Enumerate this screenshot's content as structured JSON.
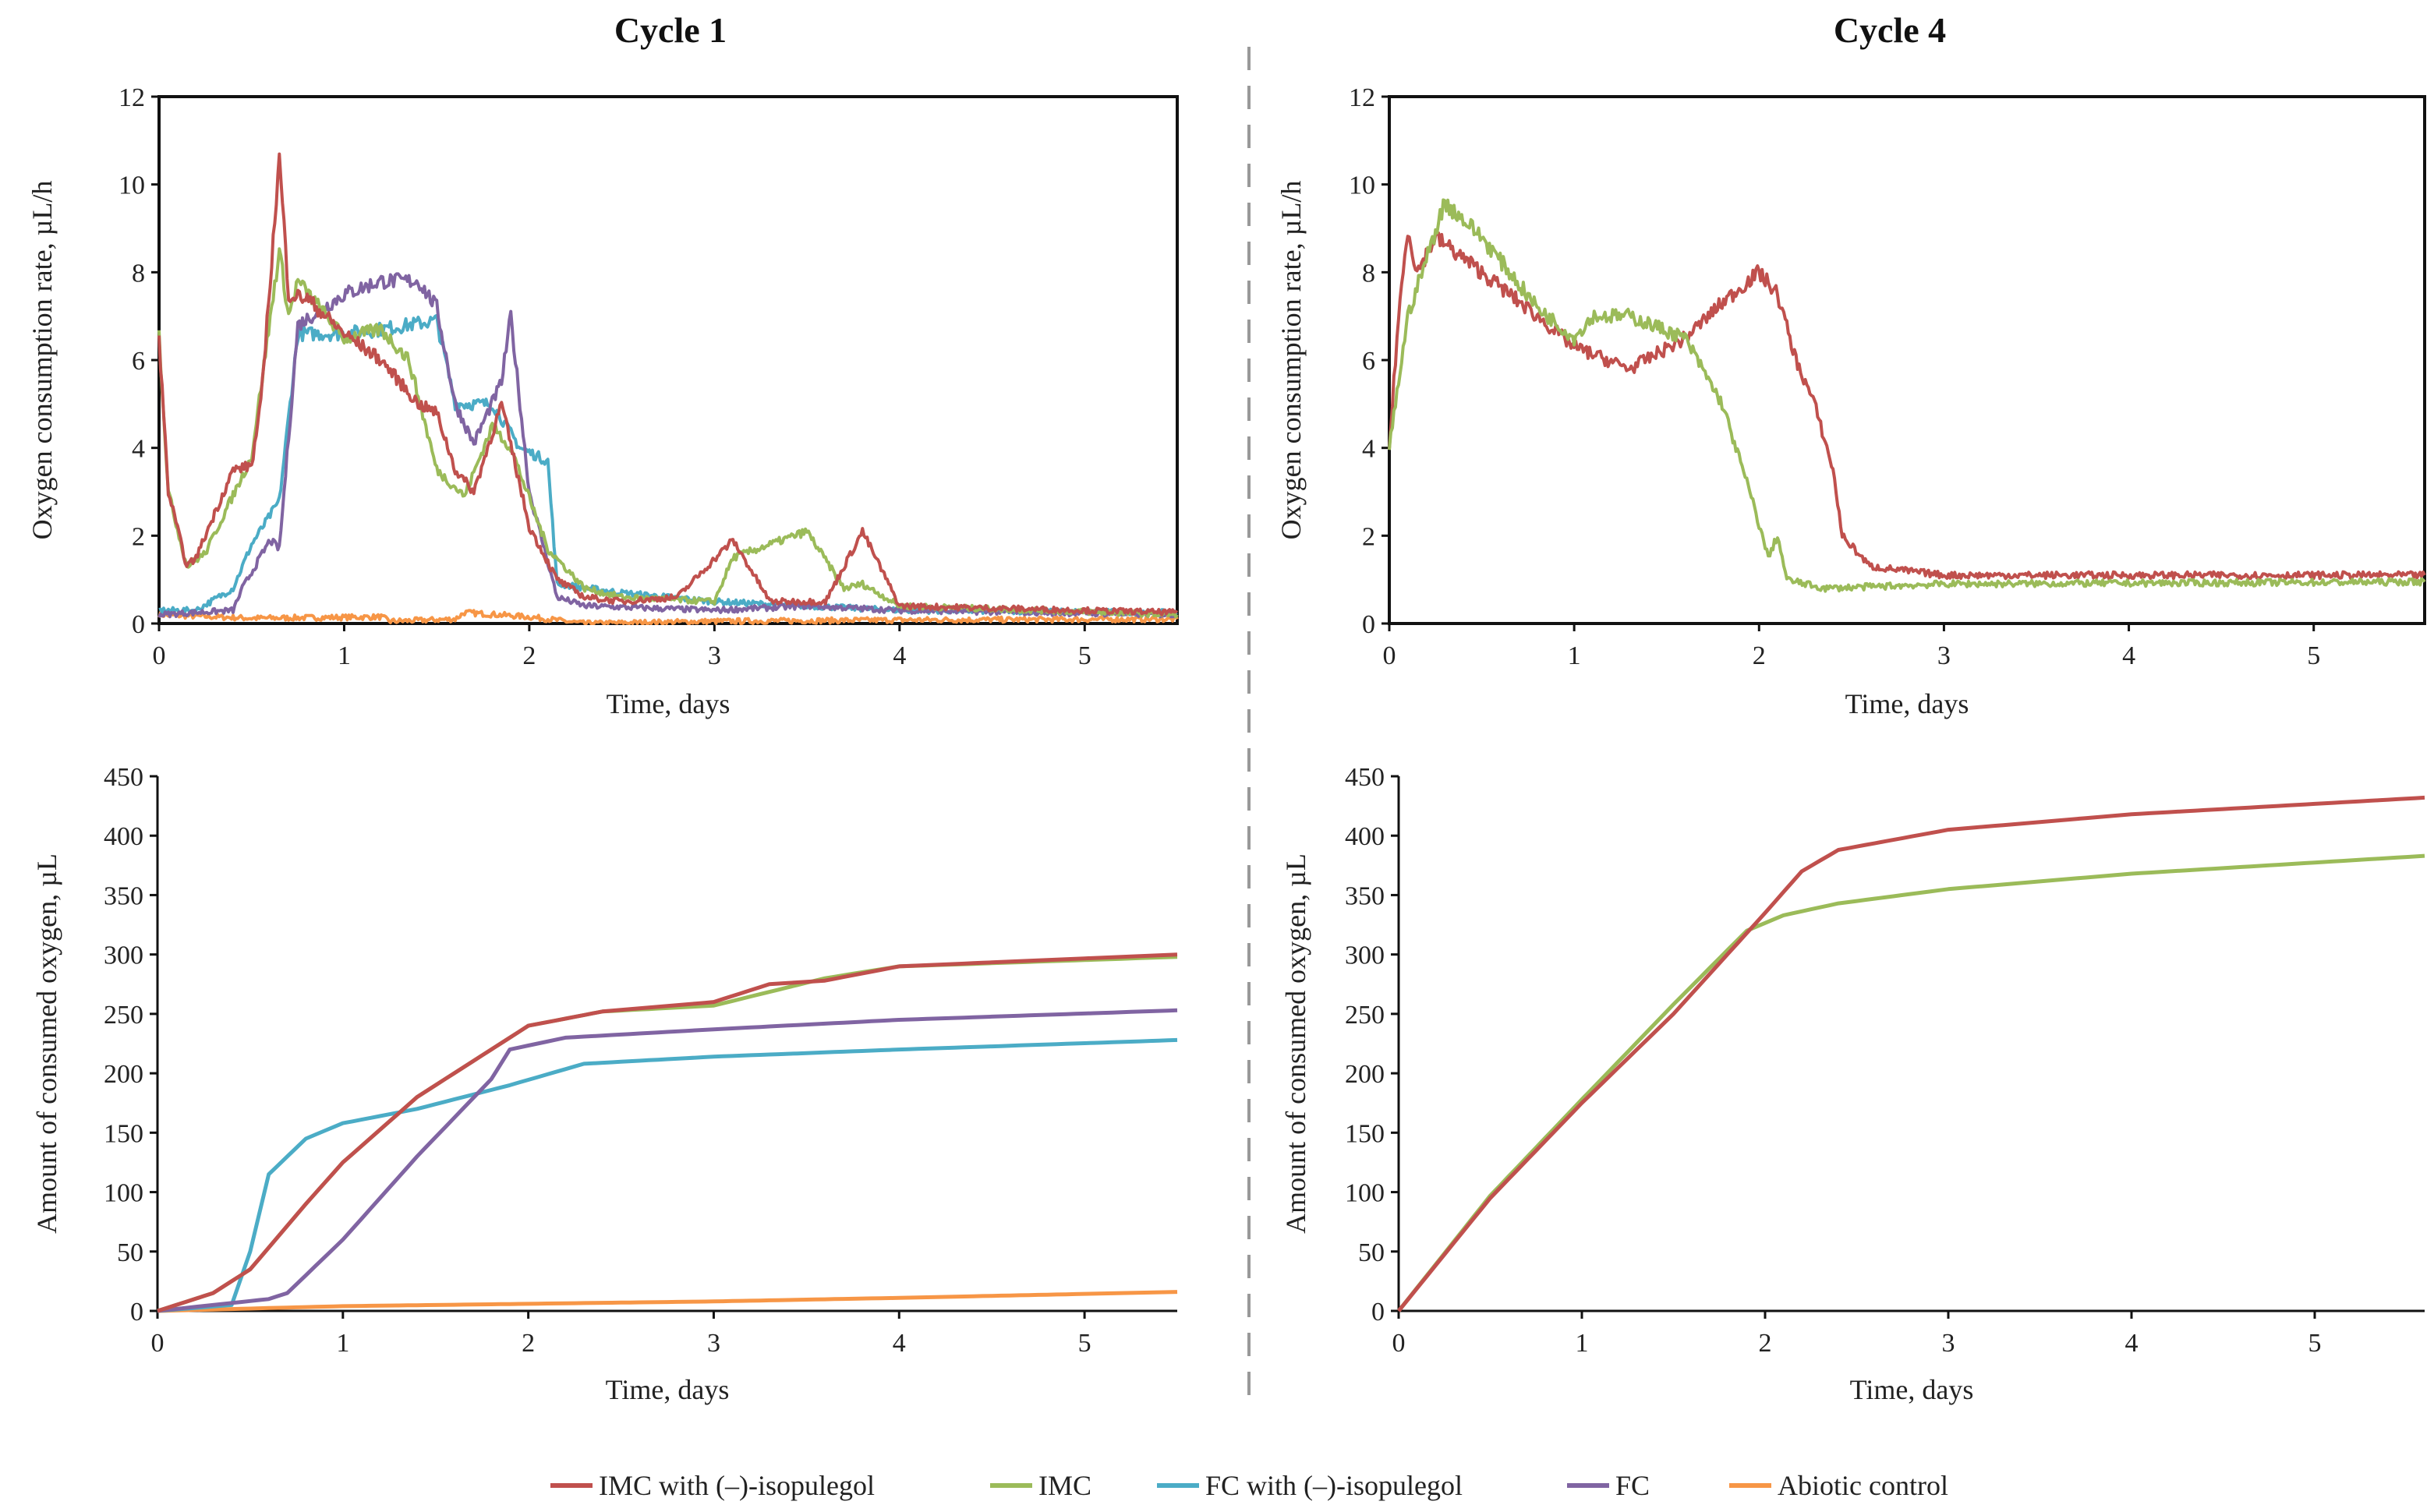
{
  "titles": {
    "left": "Cycle 1",
    "right": "Cycle 4"
  },
  "legend": [
    {
      "label": "IMC with (–)-isopulegol",
      "color": "#c0504d"
    },
    {
      "label": "IMC",
      "color": "#9bbb59"
    },
    {
      "label": "FC with (–)-isopulegol",
      "color": "#4bacc6"
    },
    {
      "label": "FC",
      "color": "#8064a2"
    },
    {
      "label": "Abiotic control",
      "color": "#f79646"
    }
  ],
  "chart_data": [
    {
      "id": "c1rate",
      "type": "line",
      "title": "Cycle 1",
      "xlabel": "Time, days",
      "ylabel": "Oxygen consumption rate,  µL/h",
      "xlim": [
        0,
        5.5
      ],
      "ylim": [
        0,
        12
      ],
      "xticks": [
        0,
        1,
        2,
        3,
        4,
        5
      ],
      "yticks": [
        0,
        2,
        4,
        6,
        8,
        10,
        12
      ],
      "series": [
        {
          "name": "Abiotic control",
          "color": "#f79646",
          "points": [
            [
              0,
              0.2
            ],
            [
              0.5,
              0.12
            ],
            [
              1.2,
              0.15
            ],
            [
              1.25,
              0.05
            ],
            [
              1.6,
              0.1
            ],
            [
              1.65,
              0.25
            ],
            [
              2.0,
              0.15
            ],
            [
              2.3,
              0
            ],
            [
              3,
              0.05
            ],
            [
              4,
              0.08
            ],
            [
              5.5,
              0.1
            ]
          ]
        },
        {
          "name": "FC with (–)-isopulegol",
          "color": "#4bacc6",
          "points": [
            [
              0,
              0.3
            ],
            [
              0.2,
              0.3
            ],
            [
              0.4,
              0.8
            ],
            [
              0.5,
              1.8
            ],
            [
              0.65,
              2.8
            ],
            [
              0.75,
              6.6
            ],
            [
              1,
              6.6
            ],
            [
              1.2,
              6.7
            ],
            [
              1.5,
              6.9
            ],
            [
              1.6,
              5
            ],
            [
              1.8,
              5
            ],
            [
              1.95,
              4
            ],
            [
              2.1,
              3.7
            ],
            [
              2.15,
              0.9
            ],
            [
              2.5,
              0.7
            ],
            [
              3,
              0.5
            ],
            [
              3.5,
              0.4
            ],
            [
              4,
              0.3
            ],
            [
              5.5,
              0.25
            ]
          ]
        },
        {
          "name": "FC",
          "color": "#8064a2",
          "points": [
            [
              0,
              0.2
            ],
            [
              0.4,
              0.3
            ],
            [
              0.45,
              0.8
            ],
            [
              0.6,
              1.9
            ],
            [
              0.65,
              1.7
            ],
            [
              0.75,
              6.8
            ],
            [
              1,
              7.5
            ],
            [
              1.2,
              7.8
            ],
            [
              1.4,
              7.8
            ],
            [
              1.5,
              7.2
            ],
            [
              1.6,
              5
            ],
            [
              1.7,
              4.1
            ],
            [
              1.85,
              5.5
            ],
            [
              1.9,
              7
            ],
            [
              2,
              3
            ],
            [
              2.15,
              0.6
            ],
            [
              2.3,
              0.4
            ],
            [
              3,
              0.3
            ],
            [
              3.5,
              0.4
            ],
            [
              4,
              0.3
            ],
            [
              5.5,
              0.2
            ]
          ]
        },
        {
          "name": "IMC",
          "color": "#9bbb59",
          "points": [
            [
              0,
              6.6
            ],
            [
              0.05,
              3
            ],
            [
              0.15,
              1.3
            ],
            [
              0.25,
              1.6
            ],
            [
              0.5,
              3.8
            ],
            [
              0.65,
              8.5
            ],
            [
              0.7,
              7
            ],
            [
              0.75,
              7.8
            ],
            [
              1,
              6.5
            ],
            [
              1.2,
              6.7
            ],
            [
              1.35,
              6
            ],
            [
              1.5,
              3.5
            ],
            [
              1.65,
              2.9
            ],
            [
              1.8,
              4.5
            ],
            [
              1.9,
              4
            ],
            [
              2.1,
              1.7
            ],
            [
              2.3,
              0.8
            ],
            [
              2.5,
              0.6
            ],
            [
              3,
              0.5
            ],
            [
              3.1,
              1.5
            ],
            [
              3.5,
              2.1
            ],
            [
              3.7,
              0.8
            ],
            [
              3.8,
              0.9
            ],
            [
              4,
              0.4
            ],
            [
              5.5,
              0.2
            ]
          ]
        },
        {
          "name": "IMC with (–)-isopulegol",
          "color": "#c0504d",
          "points": [
            [
              0,
              6.5
            ],
            [
              0.05,
              3
            ],
            [
              0.15,
              1.3
            ],
            [
              0.2,
              1.5
            ],
            [
              0.4,
              3.5
            ],
            [
              0.5,
              3.6
            ],
            [
              0.55,
              5
            ],
            [
              0.65,
              10.6
            ],
            [
              0.7,
              7.5
            ],
            [
              0.8,
              7.4
            ],
            [
              1,
              6.6
            ],
            [
              1.2,
              6
            ],
            [
              1.4,
              5
            ],
            [
              1.5,
              4.8
            ],
            [
              1.6,
              3.5
            ],
            [
              1.7,
              3
            ],
            [
              1.85,
              5
            ],
            [
              2,
              2.2
            ],
            [
              2.15,
              1
            ],
            [
              2.3,
              0.6
            ],
            [
              2.5,
              0.5
            ],
            [
              2.8,
              0.6
            ],
            [
              3.1,
              1.9
            ],
            [
              3.3,
              0.5
            ],
            [
              3.6,
              0.5
            ],
            [
              3.8,
              2.1
            ],
            [
              4,
              0.4
            ],
            [
              5.5,
              0.25
            ]
          ]
        }
      ]
    },
    {
      "id": "c1cum",
      "type": "line",
      "title": "Cycle 1",
      "xlabel": "Time, days",
      "ylabel": "Amount of consumed oxygen, µL",
      "xlim": [
        0,
        5.5
      ],
      "ylim": [
        0,
        450
      ],
      "xticks": [
        0,
        1,
        2,
        3,
        4,
        5
      ],
      "yticks": [
        0,
        50,
        100,
        150,
        200,
        250,
        300,
        350,
        400,
        450
      ],
      "series": [
        {
          "name": "Abiotic control",
          "color": "#f79646",
          "points": [
            [
              0,
              0
            ],
            [
              1,
              4
            ],
            [
              2,
              6
            ],
            [
              3,
              8
            ],
            [
              4,
              11
            ],
            [
              5.5,
              16
            ]
          ]
        },
        {
          "name": "FC with (–)-isopulegol",
          "color": "#4bacc6",
          "points": [
            [
              0,
              0
            ],
            [
              0.4,
              5
            ],
            [
              0.5,
              50
            ],
            [
              0.6,
              115
            ],
            [
              0.8,
              145
            ],
            [
              1,
              158
            ],
            [
              1.4,
              170
            ],
            [
              1.9,
              190
            ],
            [
              2.3,
              208
            ],
            [
              3,
              214
            ],
            [
              4,
              220
            ],
            [
              5.5,
              228
            ]
          ]
        },
        {
          "name": "FC",
          "color": "#8064a2",
          "points": [
            [
              0,
              0
            ],
            [
              0.6,
              10
            ],
            [
              0.7,
              15
            ],
            [
              1,
              60
            ],
            [
              1.4,
              130
            ],
            [
              1.8,
              195
            ],
            [
              1.9,
              220
            ],
            [
              2.2,
              230
            ],
            [
              3,
              237
            ],
            [
              4,
              245
            ],
            [
              5.5,
              253
            ]
          ]
        },
        {
          "name": "IMC",
          "color": "#9bbb59",
          "points": [
            [
              0,
              0
            ],
            [
              0.3,
              15
            ],
            [
              0.5,
              35
            ],
            [
              0.8,
              90
            ],
            [
              1,
              125
            ],
            [
              1.4,
              180
            ],
            [
              1.8,
              220
            ],
            [
              2,
              240
            ],
            [
              2.4,
              252
            ],
            [
              3,
              257
            ],
            [
              3.6,
              280
            ],
            [
              4,
              290
            ],
            [
              5.5,
              298
            ]
          ]
        },
        {
          "name": "IMC with (–)-isopulegol",
          "color": "#c0504d",
          "points": [
            [
              0,
              0
            ],
            [
              0.3,
              15
            ],
            [
              0.5,
              35
            ],
            [
              0.8,
              90
            ],
            [
              1,
              125
            ],
            [
              1.4,
              180
            ],
            [
              1.8,
              220
            ],
            [
              2,
              240
            ],
            [
              2.4,
              252
            ],
            [
              3,
              260
            ],
            [
              3.3,
              275
            ],
            [
              3.6,
              278
            ],
            [
              4,
              290
            ],
            [
              5.5,
              300
            ]
          ]
        }
      ]
    },
    {
      "id": "c4rate",
      "type": "line",
      "title": "Cycle 4",
      "xlabel": "Time, days",
      "ylabel": "Oxygen consumption rate,  µL/h",
      "xlim": [
        0,
        5.6
      ],
      "ylim": [
        0,
        12
      ],
      "xticks": [
        0,
        1,
        2,
        3,
        4,
        5
      ],
      "yticks": [
        0,
        2,
        4,
        6,
        8,
        10,
        12
      ],
      "series": [
        {
          "name": "IMC with (–)-isopulegol",
          "color": "#c0504d",
          "points": [
            [
              0,
              4
            ],
            [
              0.05,
              7
            ],
            [
              0.1,
              9
            ],
            [
              0.15,
              8
            ],
            [
              0.25,
              8.8
            ],
            [
              0.5,
              8
            ],
            [
              0.8,
              7
            ],
            [
              1,
              6.3
            ],
            [
              1.3,
              5.8
            ],
            [
              1.6,
              6.5
            ],
            [
              1.8,
              7.3
            ],
            [
              2,
              8
            ],
            [
              2.1,
              7.5
            ],
            [
              2.2,
              6
            ],
            [
              2.3,
              5
            ],
            [
              2.4,
              3.5
            ],
            [
              2.45,
              2
            ],
            [
              2.6,
              1.3
            ],
            [
              3,
              1.1
            ],
            [
              5.6,
              1.1
            ]
          ]
        },
        {
          "name": "IMC",
          "color": "#9bbb59",
          "points": [
            [
              0,
              4
            ],
            [
              0.1,
              7
            ],
            [
              0.3,
              9.6
            ],
            [
              0.5,
              8.8
            ],
            [
              0.8,
              7.2
            ],
            [
              1,
              6.5
            ],
            [
              1.1,
              7
            ],
            [
              1.3,
              7
            ],
            [
              1.6,
              6.5
            ],
            [
              1.8,
              5
            ],
            [
              1.95,
              3
            ],
            [
              2.05,
              1.5
            ],
            [
              2.1,
              2
            ],
            [
              2.15,
              1
            ],
            [
              2.35,
              0.8
            ],
            [
              3,
              0.9
            ],
            [
              5.6,
              0.95
            ]
          ]
        }
      ]
    },
    {
      "id": "c4cum",
      "type": "line",
      "title": "Cycle 4",
      "xlabel": "Time, days",
      "ylabel": "Amount of consumed oxygen, µL",
      "xlim": [
        0,
        5.6
      ],
      "ylim": [
        0,
        450
      ],
      "xticks": [
        0,
        1,
        2,
        3,
        4,
        5
      ],
      "yticks": [
        0,
        50,
        100,
        150,
        200,
        250,
        300,
        350,
        400,
        450
      ],
      "series": [
        {
          "name": "IMC",
          "color": "#9bbb59",
          "points": [
            [
              0,
              0
            ],
            [
              0.5,
              97
            ],
            [
              1,
              178
            ],
            [
              1.5,
              258
            ],
            [
              1.9,
              320
            ],
            [
              2.1,
              333
            ],
            [
              2.4,
              343
            ],
            [
              3,
              355
            ],
            [
              4,
              368
            ],
            [
              5.6,
              383
            ]
          ]
        },
        {
          "name": "IMC with (–)-isopulegol",
          "color": "#c0504d",
          "points": [
            [
              0,
              0
            ],
            [
              0.5,
              95
            ],
            [
              1,
              175
            ],
            [
              1.5,
              250
            ],
            [
              2,
              335
            ],
            [
              2.2,
              370
            ],
            [
              2.4,
              388
            ],
            [
              3,
              405
            ],
            [
              4,
              418
            ],
            [
              5.6,
              432
            ]
          ]
        }
      ]
    }
  ]
}
